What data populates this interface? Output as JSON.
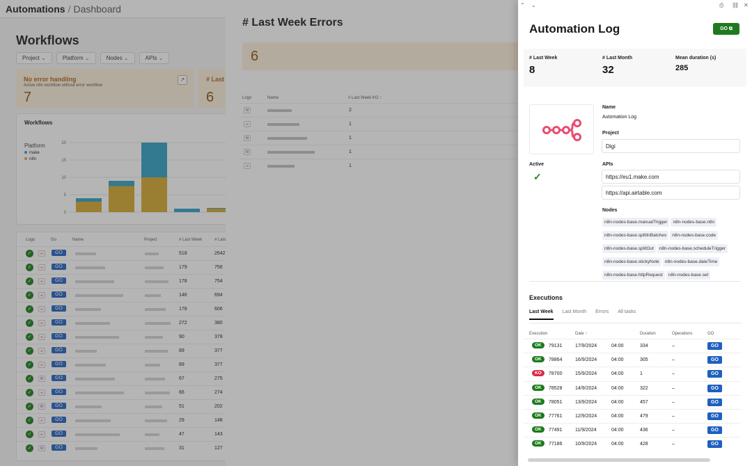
{
  "breadcrumb": {
    "app": "Automations",
    "sep": "/",
    "page": "Dashboard"
  },
  "workflows": {
    "title": "Workflows",
    "filters": [
      "Project",
      "Platform",
      "Nodes",
      "APIs"
    ],
    "cards": [
      {
        "title": "No error handling",
        "desc": "Active n8n workflow without error workflow",
        "value": "7"
      },
      {
        "title": "# Last W",
        "value": "6"
      }
    ],
    "chart_panel_title": "Workflows",
    "platform_label": "Platform",
    "legend": [
      {
        "name": "make",
        "color": "#2e9ec2"
      },
      {
        "name": "n8n",
        "color": "#d4a72c"
      }
    ],
    "chart_data": {
      "type": "bar",
      "stacked": true,
      "y_ticks": [
        "20",
        "15",
        "10",
        "5",
        "0"
      ],
      "ylim": [
        0,
        20
      ],
      "series": [
        {
          "name": "make",
          "values": [
            1,
            1.5,
            10,
            1,
            0.2
          ]
        },
        {
          "name": "n8n",
          "values": [
            3,
            7.5,
            10,
            0,
            1
          ]
        }
      ]
    },
    "table_headers": [
      "Logo",
      "Go",
      "Name",
      "Project",
      "# Last Week",
      "# Last"
    ],
    "go_label": "GO",
    "rows": [
      {
        "check": "✓",
        "logo": "n8n",
        "lw": "518",
        "last": "2642"
      },
      {
        "check": "✓",
        "logo": "n8n",
        "lw": "179",
        "last": "756"
      },
      {
        "check": "✓",
        "logo": "n8n",
        "lw": "178",
        "last": "754"
      },
      {
        "check": "✓",
        "logo": "n8n",
        "lw": "146",
        "last": "694"
      },
      {
        "check": "✓",
        "logo": "n8n",
        "lw": "178",
        "last": "606"
      },
      {
        "check": "✓",
        "logo": "n8n",
        "lw": "272",
        "last": "380"
      },
      {
        "check": "✓",
        "logo": "n8n",
        "lw": "90",
        "last": "378"
      },
      {
        "check": "✓",
        "logo": "n8n",
        "lw": "89",
        "last": "377"
      },
      {
        "check": "✓",
        "logo": "n8n",
        "lw": "89",
        "last": "377"
      },
      {
        "check": "✓",
        "logo": "make",
        "lw": "67",
        "last": "275"
      },
      {
        "check": "✓",
        "logo": "n8n",
        "lw": "66",
        "last": "274"
      },
      {
        "check": "✓",
        "logo": "make",
        "lw": "51",
        "last": "202"
      },
      {
        "check": "✓",
        "logo": "n8n",
        "lw": "29",
        "last": "148"
      },
      {
        "check": "✓",
        "logo": "n8n",
        "lw": "47",
        "last": "143"
      },
      {
        "check": "✓",
        "logo": "make",
        "lw": "31",
        "last": "127"
      }
    ]
  },
  "errors_drawer": {
    "title": "# Last Week Errors",
    "value": "6",
    "headers": [
      "Logo",
      "Name",
      "# Last Week KO ↑"
    ],
    "rows": [
      {
        "logo": "make",
        "ko": "2"
      },
      {
        "logo": "n8n",
        "ko": "1"
      },
      {
        "logo": "make",
        "ko": "1"
      },
      {
        "logo": "make",
        "ko": "1"
      },
      {
        "logo": "n8n",
        "ko": "1"
      }
    ]
  },
  "log_drawer": {
    "title": "Automation Log",
    "go_label": "GO",
    "stats": [
      {
        "label": "# Last Week",
        "value": "8"
      },
      {
        "label": "# Last Month",
        "value": "32"
      },
      {
        "label": "Mean duration (s)",
        "value": "285"
      }
    ],
    "active_label": "Active",
    "active_icon": "check-icon",
    "name_label": "Name",
    "name_value": "Automation Log",
    "project_label": "Project",
    "project_value": "Digi",
    "apis_label": "APIs",
    "apis": [
      "https://eu1.make.com",
      "https://api.airtable.com"
    ],
    "nodes_label": "Nodes",
    "nodes": [
      "n8n-nodes-base.manualTrigger",
      "n8n-nodes-base.n8n",
      "n8n-nodes-base.splitInBatches",
      "n8n-nodes-base.code",
      "n8n-nodes-base.splitOut",
      "n8n-nodes-base.scheduleTrigger",
      "n8n-nodes-base.stickyNote",
      "n8n-nodes-base.dateTime",
      "n8n-nodes-base.httpRequest",
      "n8n-nodes-base.set"
    ],
    "executions_title": "Executions",
    "tabs": [
      "Last Week",
      "Last Month",
      "Errors",
      "All tasks"
    ],
    "exec_headers": [
      "Execution",
      "Date ↑",
      "Duration",
      "Operations",
      "GO"
    ],
    "exec_rows": [
      {
        "status": "OK",
        "id": "79131",
        "date": "17/9/2024",
        "time": "04:00",
        "duration": "334",
        "ops": "–"
      },
      {
        "status": "OK",
        "id": "78864",
        "date": "16/9/2024",
        "time": "04:00",
        "duration": "305",
        "ops": "–"
      },
      {
        "status": "KO",
        "id": "78700",
        "date": "15/9/2024",
        "time": "04:00",
        "duration": "1",
        "ops": "–"
      },
      {
        "status": "OK",
        "id": "78528",
        "date": "14/9/2024",
        "time": "04:00",
        "duration": "322",
        "ops": "–"
      },
      {
        "status": "OK",
        "id": "78051",
        "date": "13/9/2024",
        "time": "04:00",
        "duration": "457",
        "ops": "–"
      },
      {
        "status": "OK",
        "id": "77761",
        "date": "12/9/2024",
        "time": "04:00",
        "duration": "479",
        "ops": "–"
      },
      {
        "status": "OK",
        "id": "77491",
        "date": "11/9/2024",
        "time": "04:00",
        "duration": "436",
        "ops": "–"
      },
      {
        "status": "OK",
        "id": "77186",
        "date": "10/9/2024",
        "time": "04:00",
        "duration": "428",
        "ops": "–"
      }
    ]
  },
  "colors": {
    "ok": "#1b7a1b",
    "ko": "#d62c4c",
    "go": "#1f5fbf",
    "accent": "#1f7a1f"
  }
}
